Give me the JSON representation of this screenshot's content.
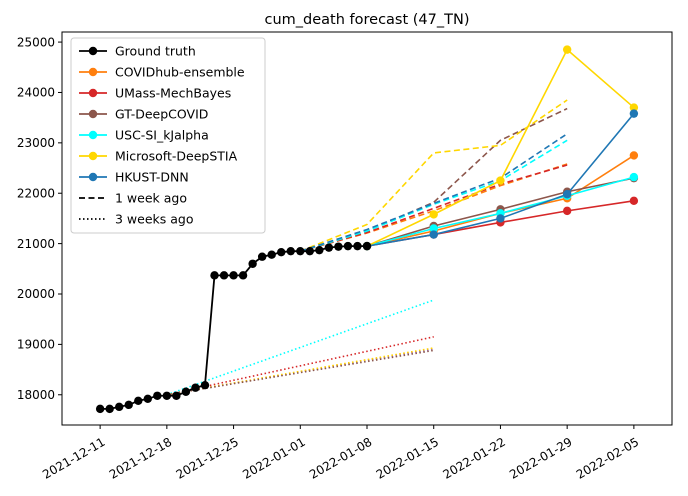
{
  "chart_data": {
    "type": "line",
    "title": "cum_death forecast (47_TN)",
    "xlabel": "",
    "ylabel": "",
    "xlim": [
      "2021-12-07",
      "2022-02-09"
    ],
    "ylim": [
      17400,
      25200
    ],
    "x_ticks": [
      "2021-12-11",
      "2021-12-18",
      "2021-12-25",
      "2022-01-01",
      "2022-01-08",
      "2022-01-15",
      "2022-01-22",
      "2022-01-29",
      "2022-02-05"
    ],
    "y_ticks": [
      18000,
      19000,
      20000,
      21000,
      22000,
      23000,
      24000,
      25000
    ],
    "legend_position": "top-left",
    "grid": false,
    "legend": [
      {
        "label": "Ground truth",
        "color": "#000000",
        "style": "solid-marker"
      },
      {
        "label": "COVIDhub-ensemble",
        "color": "#ff7f0e",
        "style": "solid-marker"
      },
      {
        "label": "UMass-MechBayes",
        "color": "#d62728",
        "style": "solid-marker"
      },
      {
        "label": "GT-DeepCOVID",
        "color": "#8c564b",
        "style": "solid-marker"
      },
      {
        "label": "USC-SI_kJalpha",
        "color": "#00ffff",
        "style": "solid-marker"
      },
      {
        "label": "Microsoft-DeepSTIA",
        "color": "#ffd700",
        "style": "solid-marker"
      },
      {
        "label": "HKUST-DNN",
        "color": "#1f77b4",
        "style": "solid-marker"
      },
      {
        "label": "1 week ago",
        "color": "#000000",
        "style": "dashed"
      },
      {
        "label": "3 weeks ago",
        "color": "#000000",
        "style": "dotted"
      }
    ],
    "ground_truth": {
      "name": "Ground truth",
      "color": "#000000",
      "x": [
        "2021-12-11",
        "2021-12-12",
        "2021-12-13",
        "2021-12-14",
        "2021-12-15",
        "2021-12-16",
        "2021-12-17",
        "2021-12-18",
        "2021-12-19",
        "2021-12-20",
        "2021-12-21",
        "2021-12-22",
        "2021-12-23",
        "2021-12-24",
        "2021-12-25",
        "2021-12-26",
        "2021-12-27",
        "2021-12-28",
        "2021-12-29",
        "2021-12-30",
        "2021-12-31",
        "2022-01-01",
        "2022-01-02",
        "2022-01-03",
        "2022-01-04",
        "2022-01-05",
        "2022-01-06",
        "2022-01-07",
        "2022-01-08"
      ],
      "y": [
        17720,
        17720,
        17760,
        17800,
        17880,
        17920,
        17980,
        17980,
        17980,
        18060,
        18140,
        18190,
        20370,
        20370,
        20370,
        20370,
        20600,
        20740,
        20780,
        20830,
        20850,
        20850,
        20850,
        20870,
        20920,
        20940,
        20950,
        20950,
        20950
      ]
    },
    "forecasts": [
      {
        "name": "COVIDhub-ensemble",
        "color": "#ff7f0e",
        "style": "solid-marker",
        "x": [
          "2022-01-08",
          "2022-01-15",
          "2022-01-22",
          "2022-01-29",
          "2022-02-05"
        ],
        "y": [
          20950,
          21250,
          21600,
          21900,
          22750
        ]
      },
      {
        "name": "UMass-MechBayes",
        "color": "#d62728",
        "style": "solid-marker",
        "x": [
          "2022-01-08",
          "2022-01-15",
          "2022-01-22",
          "2022-01-29",
          "2022-02-05"
        ],
        "y": [
          20950,
          21180,
          21420,
          21650,
          21850
        ]
      },
      {
        "name": "GT-DeepCOVID",
        "color": "#8c564b",
        "style": "solid-marker",
        "x": [
          "2022-01-08",
          "2022-01-15",
          "2022-01-22",
          "2022-01-29",
          "2022-02-05"
        ],
        "y": [
          20950,
          21350,
          21680,
          22030,
          22300
        ]
      },
      {
        "name": "USC-SI_kJalpha",
        "color": "#00ffff",
        "style": "solid-marker",
        "x": [
          "2022-01-08",
          "2022-01-15",
          "2022-01-22",
          "2022-01-29",
          "2022-02-05"
        ],
        "y": [
          20950,
          21300,
          21600,
          21950,
          22320
        ]
      },
      {
        "name": "Microsoft-DeepSTIA",
        "color": "#ffd700",
        "style": "solid-marker",
        "x": [
          "2022-01-08",
          "2022-01-15",
          "2022-01-22",
          "2022-01-29",
          "2022-02-05"
        ],
        "y": [
          20950,
          21580,
          22250,
          24850,
          23700
        ]
      },
      {
        "name": "HKUST-DNN",
        "color": "#1f77b4",
        "style": "solid-marker",
        "x": [
          "2022-01-08",
          "2022-01-15",
          "2022-01-22",
          "2022-01-29",
          "2022-02-05"
        ],
        "y": [
          20950,
          21180,
          21500,
          21980,
          23580
        ]
      },
      {
        "name": "COVIDhub-ensemble",
        "color": "#ff7f0e",
        "style": "dashed",
        "x": [
          "2022-01-01",
          "2022-01-08",
          "2022-01-15",
          "2022-01-22",
          "2022-01-29"
        ],
        "y": [
          20850,
          21210,
          21650,
          22150,
          22580
        ]
      },
      {
        "name": "UMass-MechBayes",
        "color": "#d62728",
        "style": "dashed",
        "x": [
          "2022-01-01",
          "2022-01-08",
          "2022-01-15",
          "2022-01-22",
          "2022-01-29"
        ],
        "y": [
          20850,
          21220,
          21700,
          22180,
          22560
        ]
      },
      {
        "name": "GT-DeepCOVID",
        "color": "#8c564b",
        "style": "dashed",
        "x": [
          "2022-01-01",
          "2022-01-08",
          "2022-01-15",
          "2022-01-22",
          "2022-01-29"
        ],
        "y": [
          20850,
          21250,
          21820,
          23050,
          23680
        ]
      },
      {
        "name": "USC-SI_kJalpha",
        "color": "#00ffff",
        "style": "dashed",
        "x": [
          "2022-01-01",
          "2022-01-08",
          "2022-01-15",
          "2022-01-22",
          "2022-01-29"
        ],
        "y": [
          20850,
          21250,
          21780,
          22250,
          23050
        ]
      },
      {
        "name": "Microsoft-DeepSTIA",
        "color": "#ffd700",
        "style": "dashed",
        "x": [
          "2022-01-01",
          "2022-01-08",
          "2022-01-15",
          "2022-01-22",
          "2022-01-29"
        ],
        "y": [
          20850,
          21380,
          22800,
          22950,
          23850
        ]
      },
      {
        "name": "HKUST-DNN",
        "color": "#1f77b4",
        "style": "dashed",
        "x": [
          "2022-01-01",
          "2022-01-08",
          "2022-01-15",
          "2022-01-22",
          "2022-01-29"
        ],
        "y": [
          20850,
          21280,
          21800,
          22300,
          23180
        ]
      },
      {
        "name": "COVIDhub-ensemble",
        "color": "#ff7f0e",
        "style": "dotted",
        "x": [
          "2021-12-18",
          "2022-01-15"
        ],
        "y": [
          18000,
          18920
        ]
      },
      {
        "name": "UMass-MechBayes",
        "color": "#d62728",
        "style": "dotted",
        "x": [
          "2021-12-18",
          "2022-01-15"
        ],
        "y": [
          18000,
          19150
        ]
      },
      {
        "name": "GT-DeepCOVID",
        "color": "#9467bd",
        "style": "dotted",
        "x": [
          "2021-12-18",
          "2022-01-15"
        ],
        "y": [
          18000,
          18900
        ]
      },
      {
        "name": "USC-SI_kJalpha",
        "color": "#00ffff",
        "style": "dotted",
        "x": [
          "2021-12-18",
          "2022-01-15"
        ],
        "y": [
          18000,
          19880
        ]
      },
      {
        "name": "Microsoft-DeepSTIA",
        "color": "#ffd700",
        "style": "dotted",
        "x": [
          "2021-12-18",
          "2022-01-15"
        ],
        "y": [
          18000,
          18930
        ]
      },
      {
        "name": "HKUST-DNN",
        "color": "#8c564b",
        "style": "dotted",
        "x": [
          "2021-12-18",
          "2022-01-15"
        ],
        "y": [
          18000,
          18880
        ]
      }
    ]
  }
}
